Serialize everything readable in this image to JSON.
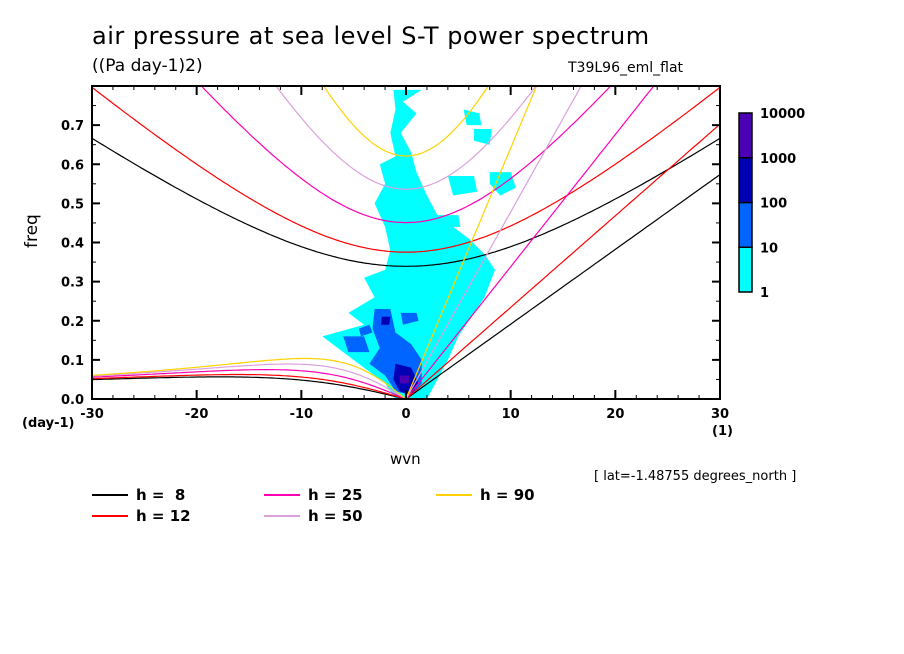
{
  "header": {
    "title": "air pressure at sea level S-T power spectrum",
    "units": "((Pa day-1)2)",
    "run_name": "T39L96_eml_flat"
  },
  "footer": {
    "lat_note": "[ lat=-1.48755 degrees_north ]"
  },
  "chart_data": {
    "type": "heatmap",
    "title": "air pressure at sea level S-T power spectrum",
    "subtitle": "((Pa day-1)2)",
    "xlabel": "wvn",
    "ylabel": "freq",
    "x_unit": "(1)",
    "y_unit": "(day-1)",
    "xlim": [
      -30,
      30
    ],
    "ylim": [
      0,
      0.8
    ],
    "xticks": [
      -30,
      -20,
      -10,
      0,
      10,
      20,
      30
    ],
    "xtick_labels": [
      "-30",
      "-20",
      "-10",
      "0",
      "10",
      "20",
      "30"
    ],
    "yticks": [
      0.0,
      0.1,
      0.2,
      0.3,
      0.4,
      0.5,
      0.6,
      0.7
    ],
    "ytick_labels": [
      "0.0",
      "0.1",
      "0.2",
      "0.3",
      "0.4",
      "0.5",
      "0.6",
      "0.7"
    ],
    "grid": false,
    "colorbar": {
      "scale": "log",
      "levels": [
        1,
        10,
        100,
        1000,
        10000
      ],
      "level_labels": [
        "1",
        "10",
        "100",
        "1000",
        "10000"
      ],
      "colors": [
        "#00ffff",
        "#0064ff",
        "#0000b4",
        "#4b00b4"
      ]
    },
    "contour_regions": [
      {
        "level": 0,
        "polygon": [
          [
            -3.6,
            0.79
          ],
          [
            -1.2,
            0.79
          ],
          [
            -1.0,
            0.74
          ],
          [
            -1.5,
            0.68
          ],
          [
            -1.0,
            0.62
          ],
          [
            -2.5,
            0.6
          ],
          [
            -2.0,
            0.55
          ],
          [
            -3.0,
            0.5
          ],
          [
            -2.0,
            0.44
          ],
          [
            -1.5,
            0.38
          ],
          [
            -2.0,
            0.33
          ],
          [
            -4.0,
            0.31
          ],
          [
            -3.0,
            0.26
          ],
          [
            -5.5,
            0.22
          ],
          [
            -4.0,
            0.19
          ],
          [
            -8.0,
            0.16
          ],
          [
            -6.0,
            0.12
          ],
          [
            -4.0,
            0.08
          ],
          [
            -2.0,
            0.04
          ],
          [
            -1.0,
            0.0
          ],
          [
            2.0,
            0.0
          ],
          [
            3.0,
            0.05
          ],
          [
            4.0,
            0.1
          ],
          [
            5.0,
            0.16
          ],
          [
            6.0,
            0.2
          ],
          [
            7.5,
            0.26
          ],
          [
            8.5,
            0.33
          ],
          [
            7.5,
            0.37
          ],
          [
            6.0,
            0.41
          ],
          [
            4.5,
            0.44
          ],
          [
            3.0,
            0.47
          ],
          [
            2.0,
            0.52
          ],
          [
            1.0,
            0.58
          ],
          [
            0.5,
            0.63
          ],
          [
            -0.5,
            0.68
          ],
          [
            1.0,
            0.73
          ],
          [
            -0.3,
            0.76
          ],
          [
            1.5,
            0.79
          ]
        ]
      },
      {
        "level": 0,
        "polygon": [
          [
            5.5,
            0.74
          ],
          [
            7.0,
            0.73
          ],
          [
            7.2,
            0.7
          ],
          [
            5.8,
            0.7
          ]
        ]
      },
      {
        "level": 0,
        "polygon": [
          [
            6.5,
            0.69
          ],
          [
            8.2,
            0.69
          ],
          [
            8.0,
            0.65
          ],
          [
            6.5,
            0.66
          ]
        ]
      },
      {
        "level": 0,
        "polygon": [
          [
            8.0,
            0.58
          ],
          [
            10.0,
            0.58
          ],
          [
            10.5,
            0.54
          ],
          [
            9.0,
            0.52
          ],
          [
            8.0,
            0.55
          ]
        ]
      },
      {
        "level": 0,
        "polygon": [
          [
            4.0,
            0.57
          ],
          [
            6.5,
            0.57
          ],
          [
            6.8,
            0.53
          ],
          [
            4.5,
            0.52
          ]
        ]
      },
      {
        "level": 0,
        "polygon": [
          [
            2.0,
            0.47
          ],
          [
            5.0,
            0.47
          ],
          [
            5.2,
            0.44
          ],
          [
            2.5,
            0.44
          ]
        ]
      },
      {
        "level": 0,
        "polygon": [
          [
            3.0,
            0.4
          ],
          [
            6.0,
            0.4
          ],
          [
            6.5,
            0.36
          ],
          [
            4.0,
            0.35
          ]
        ]
      },
      {
        "level": 1,
        "polygon": [
          [
            -3.0,
            0.23
          ],
          [
            -1.5,
            0.23
          ],
          [
            -1.0,
            0.17
          ],
          [
            0.5,
            0.14
          ],
          [
            1.5,
            0.1
          ],
          [
            1.5,
            0.04
          ],
          [
            0.5,
            0.01
          ],
          [
            -1.0,
            0.02
          ],
          [
            -2.0,
            0.06
          ],
          [
            -3.5,
            0.09
          ],
          [
            -2.5,
            0.13
          ],
          [
            -3.2,
            0.18
          ]
        ]
      },
      {
        "level": 1,
        "polygon": [
          [
            -4.5,
            0.18
          ],
          [
            -3.5,
            0.19
          ],
          [
            -3.2,
            0.17
          ],
          [
            -4.3,
            0.16
          ]
        ]
      },
      {
        "level": 1,
        "polygon": [
          [
            -0.5,
            0.22
          ],
          [
            1.0,
            0.22
          ],
          [
            1.2,
            0.2
          ],
          [
            -0.3,
            0.19
          ]
        ]
      },
      {
        "level": 1,
        "polygon": [
          [
            -6.0,
            0.16
          ],
          [
            -4.0,
            0.16
          ],
          [
            -3.5,
            0.12
          ],
          [
            -5.5,
            0.12
          ]
        ]
      },
      {
        "level": 2,
        "polygon": [
          [
            -1.0,
            0.09
          ],
          [
            0.5,
            0.08
          ],
          [
            1.2,
            0.04
          ],
          [
            0.5,
            0.01
          ],
          [
            -0.6,
            0.02
          ],
          [
            -1.2,
            0.05
          ]
        ]
      },
      {
        "level": 2,
        "polygon": [
          [
            -2.3,
            0.21
          ],
          [
            -1.5,
            0.21
          ],
          [
            -1.6,
            0.19
          ],
          [
            -2.4,
            0.19
          ]
        ]
      },
      {
        "level": 3,
        "polygon": [
          [
            -0.6,
            0.06
          ],
          [
            0.3,
            0.06
          ],
          [
            0.3,
            0.04
          ],
          [
            -0.6,
            0.04
          ]
        ]
      }
    ],
    "series": [
      {
        "name": "h =  8",
        "equivalent_depth_m": 8,
        "color": "#000000"
      },
      {
        "name": "h = 12",
        "equivalent_depth_m": 12,
        "color": "#ff0000"
      },
      {
        "name": "h = 25",
        "equivalent_depth_m": 25,
        "color": "#ff00b4"
      },
      {
        "name": "h = 50",
        "equivalent_depth_m": 50,
        "color": "#dca0dc"
      },
      {
        "name": "h = 90",
        "equivalent_depth_m": 90,
        "color": "#ffd200"
      }
    ],
    "dispersion_curves": [
      "Kelvin",
      "n=1 equatorial Rossby",
      "n=1 inertia-gravity"
    ],
    "legend_position": "bottom-left"
  }
}
